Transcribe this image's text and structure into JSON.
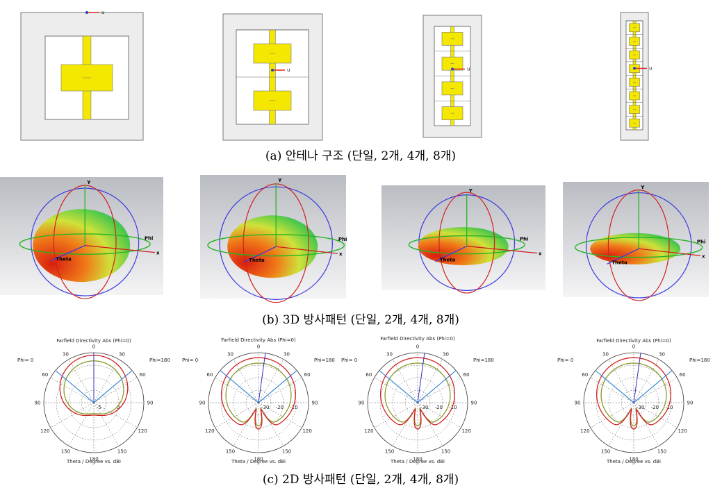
{
  "row_a": {
    "caption": "(a) 안테나 구조 (단일, 2개, 4개, 8개)",
    "axis_label": "u"
  },
  "row_b": {
    "caption": "(b) 3D 방사패턴 (단일, 2개, 4개, 8개)",
    "y_label": "Y",
    "x_label": "x",
    "phi_label": "Phi",
    "theta_label": "Theta"
  },
  "row_c": {
    "caption": "(c) 2D 방사패턴 (단일, 2개, 4개, 8개)",
    "plot_title": "Farfield Directivity Abs (Phi=0)",
    "phi_left": "Phi=  0",
    "phi_right": "Phi=180",
    "angle_labels": [
      "0",
      "30",
      "60",
      "90",
      "120",
      "150",
      "180"
    ],
    "radial_labels_single": [
      "-5",
      "0"
    ],
    "radial_labels_array": [
      "-30",
      "-20",
      "-10"
    ],
    "x_label": "Theta / Degree vs. dBi"
  }
}
